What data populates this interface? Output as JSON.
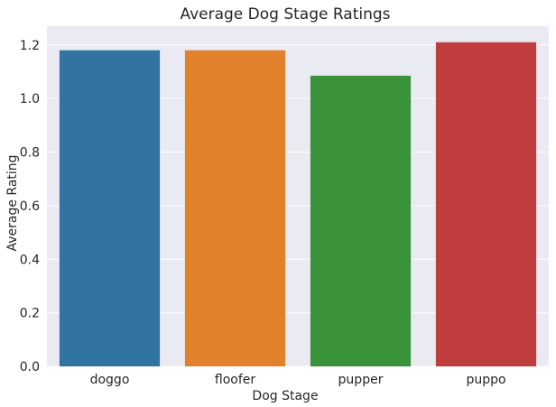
{
  "chart_data": {
    "type": "bar",
    "title": "Average Dog Stage Ratings",
    "xlabel": "Dog Stage",
    "ylabel": "Average Rating",
    "categories": [
      "doggo",
      "floofer",
      "pupper",
      "puppo"
    ],
    "values": [
      1.18,
      1.18,
      1.085,
      1.21
    ],
    "colors": [
      "#3274a1",
      "#e1812c",
      "#3a923a",
      "#c03d3e"
    ],
    "ylim": [
      0,
      1.27
    ],
    "yticks": [
      0.0,
      0.2,
      0.4,
      0.6,
      0.8,
      1.0,
      1.2
    ],
    "ytick_labels": [
      "0.0",
      "0.2",
      "0.4",
      "0.6",
      "0.8",
      "1.0",
      "1.2"
    ],
    "grid": true,
    "background": "#eaeaf2",
    "grid_color": "#ffffff"
  }
}
